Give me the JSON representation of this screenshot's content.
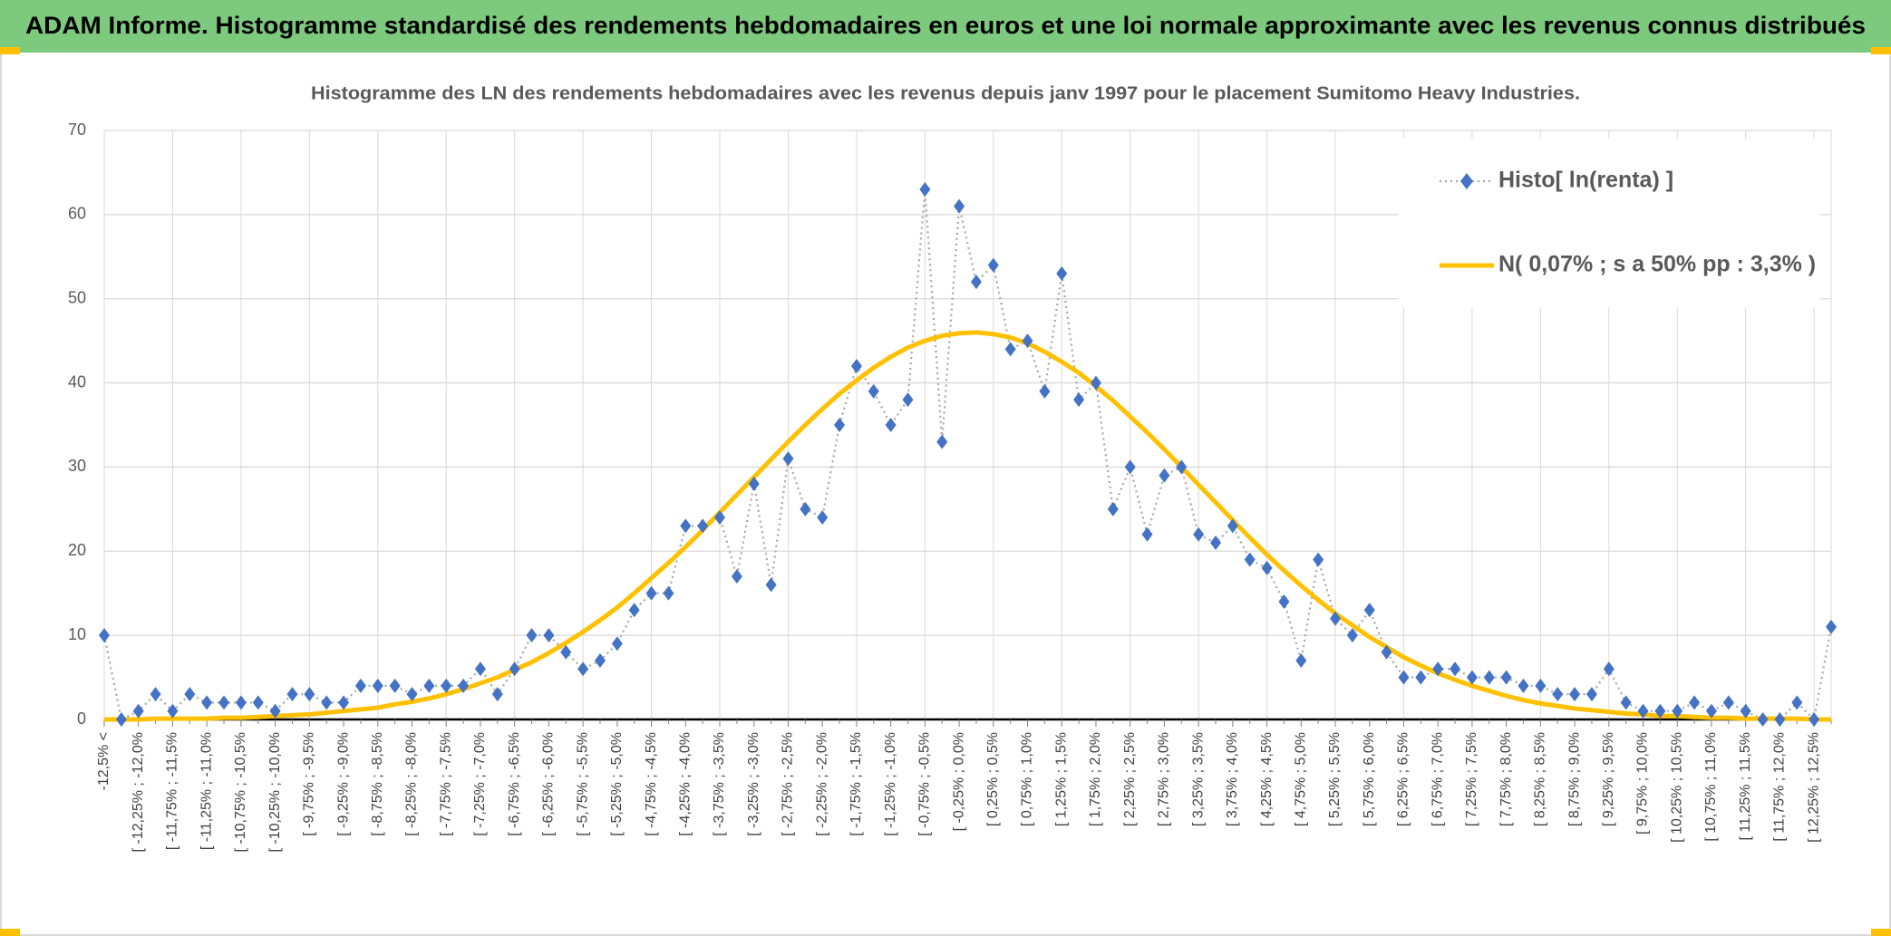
{
  "header": {
    "title": "ADAM Informe. Histogramme standardisé des rendements hebdomadaires en euros et une loi normale approximante avec les revenus connus distribués"
  },
  "chart_data": {
    "type": "line",
    "title": "Histogramme des LN des rendements hebdomadaires avec les revenus depuis janv 1997 pour le placement Sumitomo Heavy Industries.",
    "categories": [
      "-12,5% <",
      null,
      "[ -12,25% ; -12,0%",
      null,
      "[ -11,75% ; -11,5%",
      null,
      "[ -11,25% ; -11,0%",
      null,
      "[ -10,75% ; -10,5%",
      null,
      "[ -10,25% ; -10,0%",
      null,
      "[ -9,75% ; -9,5%",
      null,
      "[ -9,25% ; -9,0%",
      null,
      "[ -8,75% ; -8,5%",
      null,
      "[ -8,25% ; -8,0%",
      null,
      "[ -7,75% ; -7,5%",
      null,
      "[ -7,25% ; -7,0%",
      null,
      "[ -6,75% ; -6,5%",
      null,
      "[ -6,25% ; -6,0%",
      null,
      "[ -5,75% ; -5,5%",
      null,
      "[ -5,25% ; -5,0%",
      null,
      "[ -4,75% ; -4,5%",
      null,
      "[ -4,25% ; -4,0%",
      null,
      "[ -3,75% ; -3,5%",
      null,
      "[ -3,25% ; -3,0%",
      null,
      "[ -2,75% ; -2,5%",
      null,
      "[ -2,25% ; -2,0%",
      null,
      "[ -1,75% ; -1,5%",
      null,
      "[ -1,25% ; -1,0%",
      null,
      "[ -0,75% ; -0,5%",
      null,
      "[ -0,25% ; 0,0%",
      null,
      "[ 0,25% ; 0,5%",
      null,
      "[ 0,75% ; 1,0%",
      null,
      "[ 1,25% ; 1,5%",
      null,
      "[ 1,75% ; 2,0%",
      null,
      "[ 2,25% ; 2,5%",
      null,
      "[ 2,75% ; 3,0%",
      null,
      "[ 3,25% ; 3,5%",
      null,
      "[ 3,75% ; 4,0%",
      null,
      "[ 4,25% ; 4,5%",
      null,
      "[ 4,75% ; 5,0%",
      null,
      "[ 5,25% ; 5,5%",
      null,
      "[ 5,75% ; 6,0%",
      null,
      "[ 6,25% ; 6,5%",
      null,
      "[ 6,75% ; 7,0%",
      null,
      "[ 7,25% ; 7,5%",
      null,
      "[ 7,75% ; 8,0%",
      null,
      "[ 8,25% ; 8,5%",
      null,
      "[ 8,75% ; 9,0%",
      null,
      "[ 9,25% ; 9,5%",
      null,
      "[ 9,75% ; 10,0%",
      null,
      "[ 10,25% ; 10,5%",
      null,
      "[ 10,75% ; 11,0%",
      null,
      "[ 11,25% ; 11,5%",
      null,
      "[ 11,75% ; 12,0%",
      null,
      "[ 12,25% ; 12,5%",
      null
    ],
    "series": [
      {
        "name": "Histo[ ln(renta) ]",
        "color": "#4472c4",
        "line_color": "#a6a6a6",
        "values": [
          10,
          0,
          1,
          3,
          1,
          3,
          2,
          2,
          2,
          2,
          1,
          3,
          3,
          2,
          2,
          4,
          4,
          4,
          3,
          4,
          4,
          4,
          6,
          3,
          6,
          10,
          10,
          8,
          6,
          7,
          9,
          13,
          15,
          15,
          23,
          23,
          24,
          17,
          28,
          16,
          31,
          25,
          24,
          35,
          42,
          39,
          35,
          38,
          63,
          33,
          61,
          52,
          54,
          44,
          45,
          39,
          53,
          38,
          40,
          25,
          30,
          22,
          29,
          30,
          22,
          21,
          23,
          19,
          18,
          14,
          7,
          19,
          12,
          10,
          13,
          8,
          5,
          5,
          6,
          6,
          5,
          5,
          5,
          4,
          4,
          3,
          3,
          3,
          6,
          2,
          1,
          1,
          1,
          2,
          1,
          2,
          1,
          0,
          0,
          2,
          0,
          11
        ]
      },
      {
        "name": "N( 0,07% ; s a 50% pp : 3,3% )",
        "color": "#ffc000",
        "values": [
          0.0,
          0.0,
          0.0,
          0.1,
          0.1,
          0.1,
          0.1,
          0.2,
          0.2,
          0.3,
          0.4,
          0.5,
          0.6,
          0.8,
          1.0,
          1.2,
          1.4,
          1.8,
          2.1,
          2.5,
          3.0,
          3.6,
          4.3,
          5.0,
          5.9,
          6.8,
          7.9,
          9.1,
          10.4,
          11.8,
          13.3,
          15.0,
          16.8,
          18.6,
          20.5,
          22.5,
          24.6,
          26.7,
          28.8,
          30.9,
          33.0,
          35.0,
          36.9,
          38.7,
          40.3,
          41.8,
          43.1,
          44.2,
          45.0,
          45.6,
          45.9,
          46.0,
          45.8,
          45.4,
          44.7,
          43.7,
          42.5,
          41.2,
          39.6,
          37.9,
          36.0,
          34.1,
          32.1,
          30.0,
          27.9,
          25.8,
          23.7,
          21.6,
          19.6,
          17.7,
          15.9,
          14.2,
          12.6,
          11.2,
          9.8,
          8.6,
          7.4,
          6.4,
          5.5,
          4.7,
          4.0,
          3.4,
          2.8,
          2.3,
          1.9,
          1.6,
          1.3,
          1.1,
          0.9,
          0.7,
          0.6,
          0.4,
          0.4,
          0.3,
          0.2,
          0.2,
          0.1,
          0.1,
          0.1,
          0.1,
          0.0,
          0.0
        ]
      }
    ],
    "ylim": [
      0,
      70
    ],
    "yticks": [
      0,
      10,
      20,
      30,
      40,
      50,
      60,
      70
    ],
    "grid": true,
    "legend": "top-right"
  }
}
